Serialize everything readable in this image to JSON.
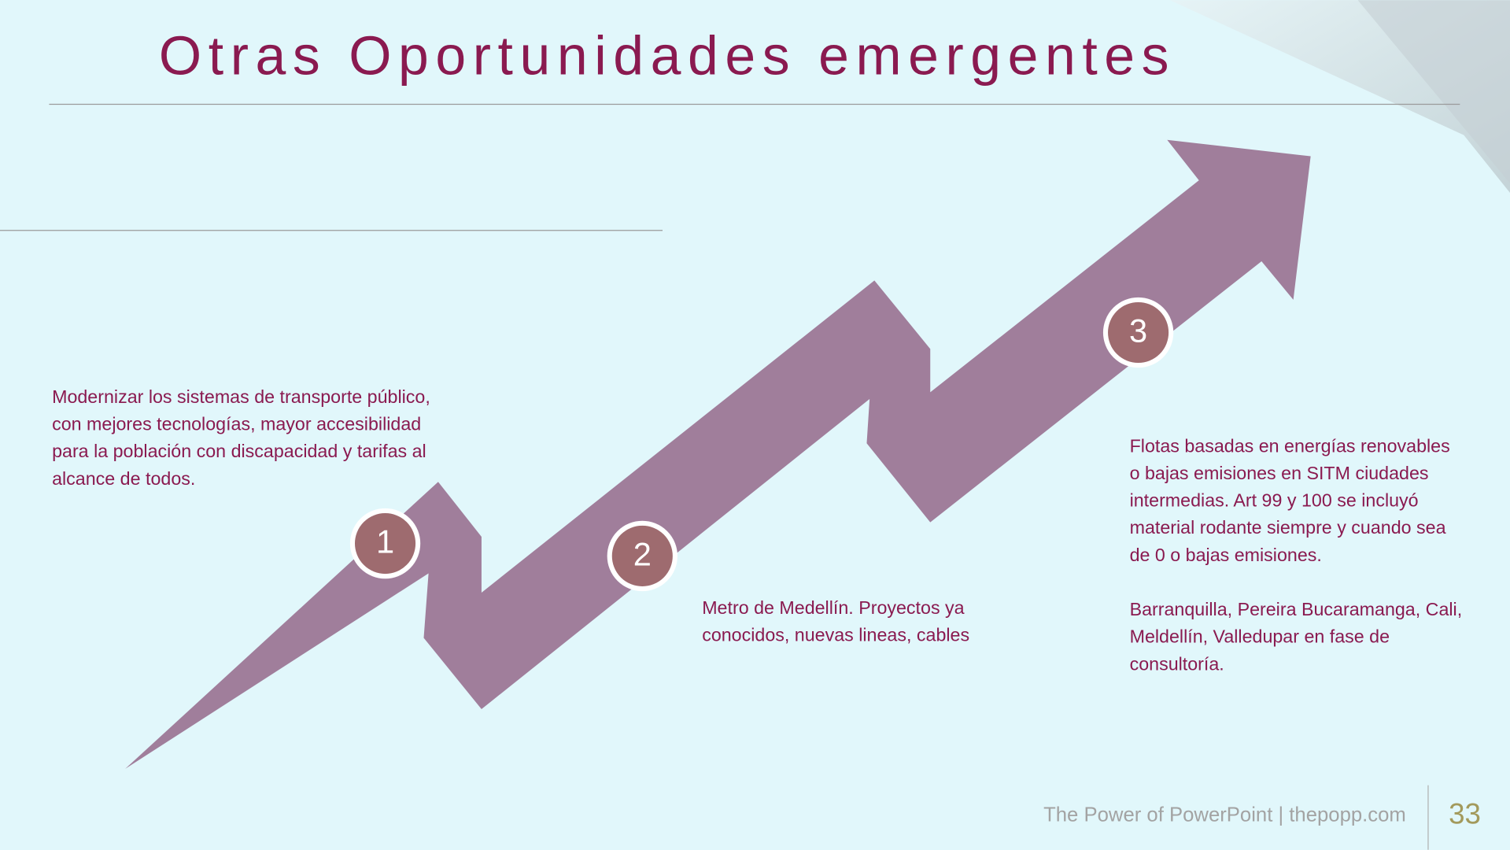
{
  "title": "Otras Oportunidades emergentes",
  "steps": [
    {
      "number": "1",
      "lines": [
        "Modernizar los sistemas de transporte público,",
        "con mejores tecnologías, mayor accesibilidad",
        "para la población con discapacidad y tarifas al",
        "alcance de todos."
      ]
    },
    {
      "number": "2",
      "lines": [
        "Metro de Medellín. Proyectos ya",
        "conocidos, nuevas lineas, cables"
      ]
    },
    {
      "number": "3",
      "lines": [
        "Flotas basadas en energías renovables",
        "o bajas emisiones en SITM ciudades",
        "intermedias. Art 99 y 100 se incluyó",
        "material rodante siempre y cuando sea",
        "de 0 o bajas emisiones.",
        "",
        "Barranquilla, Pereira Bucaramanga, Cali,",
        "Meldellín, Valledupar en fase de",
        "consultoría."
      ]
    }
  ],
  "footer": {
    "text": "The Power of PowerPoint | thepopp.com",
    "page": "33"
  }
}
